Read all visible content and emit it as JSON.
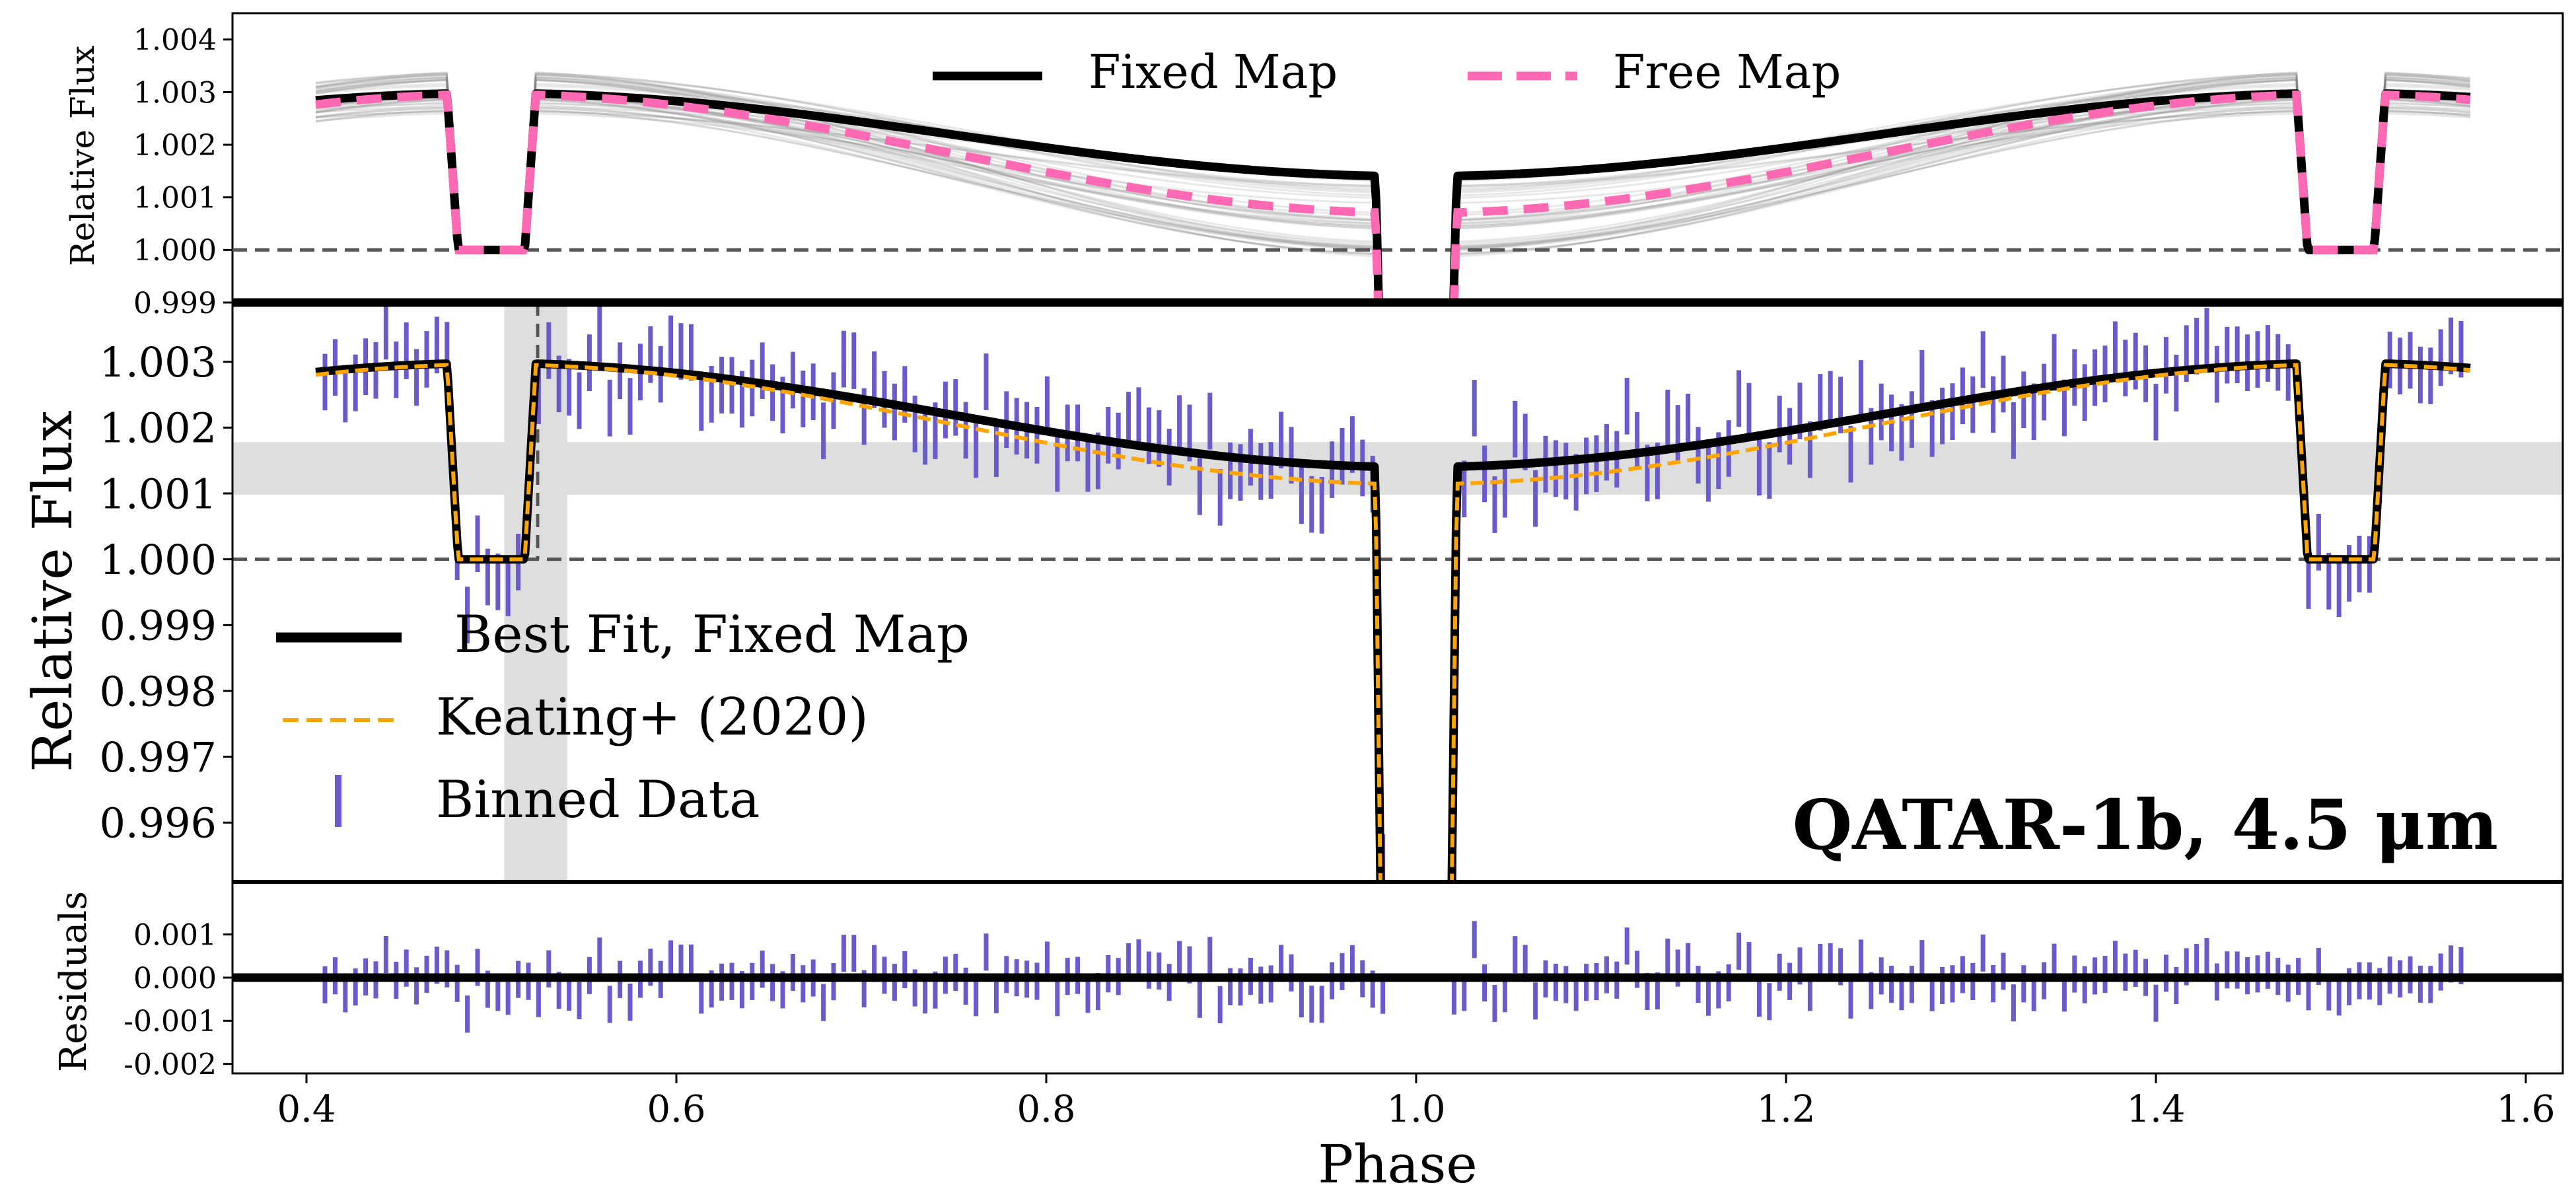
{
  "figure": {
    "annotation": "QATAR-1b, 4.5 μm",
    "xlabel": "Phase",
    "x_ticks": [
      "0.4",
      "0.6",
      "0.8",
      "1.0",
      "1.2",
      "1.4",
      "1.6"
    ],
    "x_tick_values": [
      0.4,
      0.6,
      0.8,
      1.0,
      1.2,
      1.4,
      1.6
    ],
    "xlim": [
      0.36,
      1.62
    ]
  },
  "chart_data": [
    {
      "type": "line",
      "panel": "top",
      "ylabel": "Relative Flux",
      "ylim": [
        0.999,
        1.0045
      ],
      "y_ticks": [
        "0.999",
        "1.000",
        "1.001",
        "1.002",
        "1.003",
        "1.004"
      ],
      "y_tick_values": [
        0.999,
        1.0,
        1.001,
        1.002,
        1.003,
        1.004
      ],
      "reference_line": 1.0,
      "legend": {
        "placement": "top-center",
        "entries": [
          "Fixed Map",
          "Free Map"
        ]
      },
      "model": {
        "transit_centers": [
          0.5,
          1.5
        ],
        "transit_half_width": 0.024,
        "transit_ingress": 0.006,
        "eclipse_center": 1.0,
        "eclipse_half_width": 0.022,
        "eclipse_ingress": 0.004
      },
      "series": [
        {
          "name": "Fixed Map",
          "color": "#000000",
          "style": "solid",
          "max": 1.00298,
          "min": 1.0014,
          "baseline": 1.0
        },
        {
          "name": "Free Map",
          "color": "#ff69b4",
          "style": "dashed",
          "max": 1.00296,
          "min": 1.0007,
          "baseline": 1.0
        },
        {
          "color": "#808080",
          "style": "posterior-samples",
          "max_range": [
            1.0026,
            1.0034
          ],
          "min_range": [
            0.9998,
            1.0015
          ],
          "count": 45
        }
      ]
    },
    {
      "type": "line",
      "panel": "middle",
      "ylabel": "Relative Flux",
      "ylim": [
        0.9951,
        1.0039
      ],
      "y_ticks": [
        "0.996",
        "0.997",
        "0.998",
        "0.999",
        "1.000",
        "1.001",
        "1.002",
        "1.003"
      ],
      "y_tick_values": [
        0.996,
        0.997,
        0.998,
        0.999,
        1.0,
        1.001,
        1.002,
        1.003
      ],
      "reference_line": 1.0,
      "shaded_band": [
        1.00098,
        1.00178
      ],
      "shaded_span": [
        0.507,
        0.541
      ],
      "vertical_marker": 0.525,
      "legend": {
        "placement": "lower-left",
        "entries": [
          "Best Fit, Fixed Map",
          "Keating+ (2020)",
          "Binned Data"
        ]
      },
      "series": [
        {
          "name": "Best Fit, Fixed Map",
          "color": "#000000",
          "style": "solid",
          "max": 1.00298,
          "min": 1.0014,
          "baseline": 1.0
        },
        {
          "name": "Keating+ (2020)",
          "color": "#ffa500",
          "style": "dashed",
          "max": 1.00296,
          "min": 1.00114,
          "baseline": 1.0
        },
        {
          "name": "Binned Data",
          "color": "#6a5acd",
          "style": "errorbar",
          "phase_start": 0.41,
          "phase_end": 1.565,
          "n_bins": 211,
          "error": 0.00043
        }
      ]
    },
    {
      "type": "scatter",
      "panel": "bottom",
      "ylabel": "Residuals",
      "ylim": [
        -0.00222,
        0.00222
      ],
      "y_ticks": [
        "0.001",
        "0.000",
        "-0.001",
        "-0.002"
      ],
      "y_tick_values": [
        0.001,
        0.0,
        -0.001,
        -0.002
      ],
      "reference_line": 0.0,
      "series": [
        {
          "color": "#6a5acd",
          "style": "errorbar",
          "error": 0.00043,
          "n_bins": 211
        }
      ]
    }
  ]
}
